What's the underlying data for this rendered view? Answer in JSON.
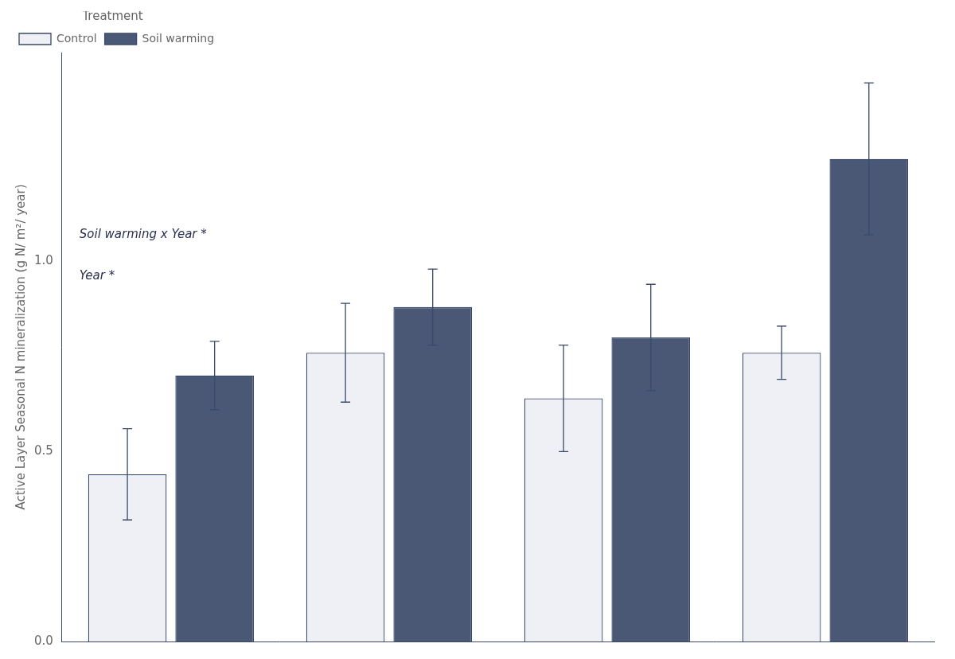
{
  "chart_data": {
    "type": "bar",
    "ylabel": "Active Layer Seasonal N mineralization (g N/ m²/ year)",
    "categories": [
      null,
      null,
      null,
      null
    ],
    "series": [
      {
        "name": "Control",
        "color": "#eef0f5",
        "values": [
          0.44,
          0.76,
          0.64,
          0.76
        ],
        "errors": [
          0.12,
          0.13,
          0.14,
          0.07
        ]
      },
      {
        "name": "Soil warming",
        "color": "#4a5875",
        "values": [
          0.7,
          0.88,
          0.8,
          1.27
        ],
        "errors": [
          0.09,
          0.1,
          0.14,
          0.2
        ]
      }
    ],
    "legend": "upper left",
    "legend_title": "Treatment",
    "annotations": [
      "Soil warming x Year *",
      "Year *"
    ],
    "ylim": [
      0,
      1.55
    ],
    "yticks": [
      {
        "value": 0,
        "label": "0.0"
      },
      0.5,
      {
        "value": 1.0,
        "label": "1.0"
      }
    ],
    "grid": false,
    "tick_labels": "y"
  }
}
